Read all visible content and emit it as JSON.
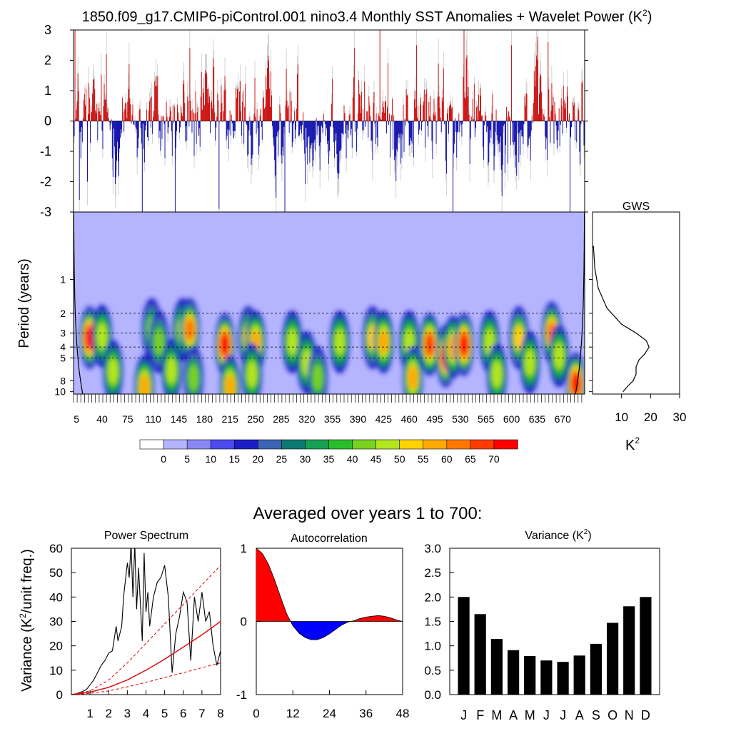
{
  "figure": {
    "title": "1850.f09_g17.CMIP6-piControl.001 nino3.4 Monthly SST Anomalies + Wavelet Power (K",
    "title_sup": "2",
    "title_close": ")",
    "subtitle": "Averaged over years 1 to 700:"
  },
  "colors": {
    "positive": "#cc0000",
    "negative": "#0000aa",
    "line": "#000000",
    "red_curve": "#dd0000"
  },
  "chart_data": [
    {
      "id": "anomaly",
      "type": "bar",
      "title": "",
      "xlabel": "",
      "ylabel": "",
      "x_range": [
        1,
        700
      ],
      "ylim": [
        -3,
        3
      ],
      "y_ticks": [
        "3",
        "2",
        "1",
        "0",
        "-1",
        "-2",
        "-3"
      ],
      "description_colors": {
        "above_zero": "red",
        "below_zero": "blue"
      },
      "peaks": [
        {
          "x": 3,
          "y": 3.0
        },
        {
          "x": 9,
          "y": -2.6
        },
        {
          "x": 20,
          "y": -2.0
        },
        {
          "x": 46,
          "y": 2.2
        },
        {
          "x": 95,
          "y": -3.0
        },
        {
          "x": 140,
          "y": -3.0
        },
        {
          "x": 160,
          "y": 2.4
        },
        {
          "x": 200,
          "y": -2.9
        },
        {
          "x": 290,
          "y": -3.0
        },
        {
          "x": 385,
          "y": 2.4
        },
        {
          "x": 420,
          "y": 3.0
        },
        {
          "x": 470,
          "y": 2.5
        },
        {
          "x": 520,
          "y": -3.0
        },
        {
          "x": 535,
          "y": 3.0
        },
        {
          "x": 600,
          "y": 2.5
        },
        {
          "x": 650,
          "y": 2.6
        },
        {
          "x": 680,
          "y": -3.0
        }
      ]
    },
    {
      "id": "wavelet",
      "type": "heatmap",
      "title": "",
      "xlabel": "",
      "ylabel": "Period (years)",
      "x_range": [
        1,
        700
      ],
      "x_ticks": [
        "5",
        "40",
        "75",
        "110",
        "145",
        "180",
        "215",
        "250",
        "285",
        "320",
        "355",
        "390",
        "425",
        "460",
        "495",
        "530",
        "565",
        "600",
        "635",
        "670"
      ],
      "x_tick_values": [
        5,
        40,
        75,
        110,
        145,
        180,
        215,
        250,
        285,
        320,
        355,
        390,
        425,
        460,
        495,
        530,
        565,
        600,
        635,
        670
      ],
      "y_scale": "log",
      "y_range": [
        0.25,
        10.5
      ],
      "y_ticks": [
        "1",
        "2",
        "3",
        "4",
        "5",
        "8",
        "10"
      ],
      "y_tick_values": [
        1,
        2,
        3,
        4,
        5,
        8,
        10
      ],
      "dashed_periods": [
        2,
        3,
        4,
        5
      ],
      "colorbar": {
        "labels": [
          "0",
          "5",
          "10",
          "15",
          "20",
          "25",
          "30",
          "35",
          "40",
          "45",
          "50",
          "55",
          "60",
          "65",
          "70"
        ],
        "colors": [
          "#ffffff",
          "#b4b4ff",
          "#8787f5",
          "#4b4bf0",
          "#1e1ec8",
          "#3c64b4",
          "#0c7a72",
          "#17a052",
          "#2abe2a",
          "#78d21e",
          "#b4e61e",
          "#ffd200",
          "#ffaa00",
          "#ff7800",
          "#ff3c00",
          "#ff0000"
        ]
      },
      "hotspots": [
        {
          "x": 23,
          "p": 3.3,
          "v": 70
        },
        {
          "x": 40,
          "p": 3.2,
          "v": 45
        },
        {
          "x": 55,
          "p": 6.6,
          "v": 45
        },
        {
          "x": 98,
          "p": 9.0,
          "v": 55
        },
        {
          "x": 108,
          "p": 2.8,
          "v": 42
        },
        {
          "x": 118,
          "p": 3.6,
          "v": 40
        },
        {
          "x": 135,
          "p": 6.5,
          "v": 45
        },
        {
          "x": 150,
          "p": 2.8,
          "v": 45
        },
        {
          "x": 160,
          "p": 2.8,
          "v": 62
        },
        {
          "x": 165,
          "p": 7.5,
          "v": 42
        },
        {
          "x": 208,
          "p": 3.8,
          "v": 70
        },
        {
          "x": 215,
          "p": 9.0,
          "v": 55
        },
        {
          "x": 240,
          "p": 3.3,
          "v": 50
        },
        {
          "x": 250,
          "p": 3.6,
          "v": 58
        },
        {
          "x": 245,
          "p": 7.0,
          "v": 45
        },
        {
          "x": 300,
          "p": 3.6,
          "v": 45
        },
        {
          "x": 320,
          "p": 5.5,
          "v": 45
        },
        {
          "x": 335,
          "p": 7.5,
          "v": 40
        },
        {
          "x": 365,
          "p": 3.6,
          "v": 45
        },
        {
          "x": 410,
          "p": 3.3,
          "v": 52
        },
        {
          "x": 425,
          "p": 3.6,
          "v": 58
        },
        {
          "x": 460,
          "p": 3.6,
          "v": 45
        },
        {
          "x": 465,
          "p": 7.5,
          "v": 55
        },
        {
          "x": 488,
          "p": 3.8,
          "v": 65
        },
        {
          "x": 510,
          "p": 4.8,
          "v": 70
        },
        {
          "x": 520,
          "p": 4.0,
          "v": 55
        },
        {
          "x": 535,
          "p": 3.8,
          "v": 70
        },
        {
          "x": 570,
          "p": 3.6,
          "v": 45
        },
        {
          "x": 580,
          "p": 7.0,
          "v": 48
        },
        {
          "x": 610,
          "p": 3.3,
          "v": 52
        },
        {
          "x": 625,
          "p": 5.5,
          "v": 45
        },
        {
          "x": 655,
          "p": 3.0,
          "v": 60
        },
        {
          "x": 665,
          "p": 4.8,
          "v": 45
        },
        {
          "x": 688,
          "p": 8.5,
          "v": 70
        }
      ]
    },
    {
      "id": "gws",
      "type": "line",
      "title": "GWS",
      "xlabel": "K",
      "xlabel_sup": "2",
      "ylabel": "",
      "xlim": [
        0,
        30
      ],
      "x_ticks": [
        "10",
        "20",
        "30"
      ],
      "x_tick_values": [
        10,
        20,
        30
      ],
      "y_scale": "log",
      "y_range": [
        0.25,
        10.5
      ],
      "series": [
        {
          "x": [
            0.3,
            0.8,
            2,
            5,
            10,
            15,
            18.5,
            19.5,
            18,
            16,
            15,
            15,
            14,
            12,
            10.5
          ],
          "y": [
            0.5,
            0.8,
            1.2,
            1.8,
            2.5,
            3.0,
            3.5,
            4.0,
            4.6,
            5.2,
            6.0,
            7.0,
            8.0,
            9.0,
            10.0
          ]
        }
      ]
    },
    {
      "id": "power_spectrum",
      "type": "line",
      "title": "Power Spectrum",
      "xlabel": "",
      "ylabel": "Variance (K",
      "ylabel_sup": "2",
      "ylabel_close": "/unit freq.)",
      "xlim": [
        0,
        8
      ],
      "ylim": [
        0,
        60
      ],
      "x_ticks": [
        "1",
        "2",
        "3",
        "4",
        "5",
        "6",
        "7",
        "8"
      ],
      "x_tick_values": [
        1,
        2,
        3,
        4,
        5,
        6,
        7,
        8
      ],
      "y_ticks": [
        "0",
        "10",
        "20",
        "30",
        "40",
        "50",
        "60"
      ],
      "y_tick_values": [
        0,
        10,
        20,
        30,
        40,
        50,
        60
      ],
      "series": [
        {
          "style": "black",
          "x": [
            0.2,
            0.5,
            0.8,
            1.0,
            1.2,
            1.4,
            1.6,
            1.8,
            2.0,
            2.2,
            2.4,
            2.5,
            2.7,
            2.8,
            3.0,
            3.1,
            3.2,
            3.3,
            3.4,
            3.5,
            3.6,
            3.8,
            3.9,
            4.0,
            4.1,
            4.2,
            4.4,
            4.6,
            4.8,
            5.0,
            5.2,
            5.4,
            5.6,
            5.8,
            6.0,
            6.2,
            6.4,
            6.6,
            6.8,
            7.0,
            7.2,
            7.4,
            7.6,
            7.8,
            8.0
          ],
          "y": [
            0.2,
            1,
            2,
            4,
            6,
            9,
            12,
            14,
            17,
            18,
            28,
            22,
            28,
            40,
            54,
            48,
            62,
            40,
            62,
            35,
            52,
            22,
            58,
            34,
            42,
            28,
            40,
            46,
            48,
            53,
            40,
            9,
            25,
            32,
            42,
            38,
            14,
            40,
            30,
            42,
            30,
            34,
            20,
            12,
            18
          ]
        },
        {
          "style": "red_solid",
          "x": [
            0,
            1,
            2,
            3,
            4,
            5,
            6,
            7,
            8
          ],
          "y": [
            0,
            1.0,
            3.0,
            6.0,
            10.0,
            14.5,
            19.5,
            24.5,
            30.0
          ]
        },
        {
          "style": "red_dashed",
          "x": [
            0,
            1,
            2,
            3,
            4,
            5,
            6,
            7,
            8
          ],
          "y": [
            0,
            1.5,
            6.0,
            13.0,
            21.0,
            29.0,
            37.0,
            45.0,
            53.0
          ]
        },
        {
          "style": "red_dashed",
          "x": [
            0,
            1,
            2,
            3,
            4,
            5,
            6,
            7,
            8
          ],
          "y": [
            0,
            0.5,
            1.5,
            3.2,
            5.0,
            7.0,
            9.0,
            11.0,
            13.0
          ]
        }
      ]
    },
    {
      "id": "autocorrelation",
      "type": "area",
      "title": "Autocorrelation",
      "xlabel": "",
      "ylabel": "",
      "xlim": [
        0,
        48
      ],
      "ylim": [
        -1,
        1
      ],
      "x_ticks": [
        "0",
        "12",
        "24",
        "36",
        "48"
      ],
      "x_tick_values": [
        0,
        12,
        24,
        36,
        48
      ],
      "y_ticks": [
        "1",
        "0",
        "-1"
      ],
      "y_tick_values": [
        1,
        0,
        -1
      ],
      "series": [
        {
          "x": [
            0,
            2,
            4,
            6,
            8,
            10,
            12,
            14,
            16,
            18,
            20,
            22,
            24,
            26,
            28,
            30,
            32,
            34,
            36,
            38,
            40,
            42,
            44,
            46,
            48
          ],
          "y": [
            1.0,
            0.93,
            0.78,
            0.57,
            0.33,
            0.1,
            -0.06,
            -0.16,
            -0.22,
            -0.25,
            -0.25,
            -0.22,
            -0.17,
            -0.11,
            -0.05,
            -0.01,
            0.01,
            0.04,
            0.06,
            0.07,
            0.08,
            0.07,
            0.05,
            0.02,
            0.0
          ]
        }
      ]
    },
    {
      "id": "variance",
      "type": "bar",
      "title": "Variance (K",
      "title_sup": "2",
      "title_close": ")",
      "xlabel": "",
      "ylabel": "",
      "categories": [
        "J",
        "F",
        "M",
        "A",
        "M",
        "J",
        "J",
        "A",
        "S",
        "O",
        "N",
        "D"
      ],
      "values": [
        2.0,
        1.65,
        1.14,
        0.91,
        0.79,
        0.7,
        0.67,
        0.8,
        1.04,
        1.47,
        1.81,
        2.0
      ],
      "ylim": [
        0,
        3.0
      ],
      "y_ticks": [
        "0.0",
        "0.5",
        "1.0",
        "1.5",
        "2.0",
        "2.5",
        "3.0"
      ],
      "y_tick_values": [
        0,
        0.5,
        1.0,
        1.5,
        2.0,
        2.5,
        3.0
      ]
    }
  ]
}
